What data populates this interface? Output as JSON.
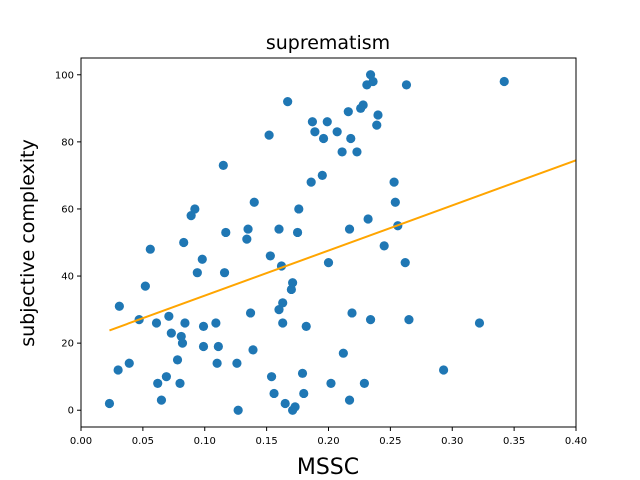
{
  "chart_data": {
    "type": "scatter",
    "title": "suprematism",
    "xlabel": "MSSC",
    "ylabel": "subjective complexity",
    "xlim": [
      0.0,
      0.4
    ],
    "ylim": [
      -5,
      105
    ],
    "xticks": [
      0.0,
      0.05,
      0.1,
      0.15,
      0.2,
      0.25,
      0.3,
      0.35,
      0.4
    ],
    "xtick_labels": [
      "0.00",
      "0.05",
      "0.10",
      "0.15",
      "0.20",
      "0.25",
      "0.30",
      "0.35",
      "0.40"
    ],
    "yticks": [
      0,
      20,
      40,
      60,
      80,
      100
    ],
    "ytick_labels": [
      "0",
      "20",
      "40",
      "60",
      "80",
      "100"
    ],
    "grid": false,
    "point_color": "#1f77b4",
    "line_color": "#ffa500",
    "points": [
      [
        0.023,
        2
      ],
      [
        0.03,
        12
      ],
      [
        0.031,
        31
      ],
      [
        0.039,
        14
      ],
      [
        0.047,
        27
      ],
      [
        0.052,
        37
      ],
      [
        0.056,
        48
      ],
      [
        0.061,
        26
      ],
      [
        0.062,
        8
      ],
      [
        0.065,
        3
      ],
      [
        0.069,
        10
      ],
      [
        0.071,
        28
      ],
      [
        0.073,
        23
      ],
      [
        0.078,
        15
      ],
      [
        0.08,
        8
      ],
      [
        0.081,
        22
      ],
      [
        0.082,
        20
      ],
      [
        0.083,
        50
      ],
      [
        0.084,
        26
      ],
      [
        0.089,
        58
      ],
      [
        0.092,
        60
      ],
      [
        0.094,
        41
      ],
      [
        0.098,
        45
      ],
      [
        0.099,
        25
      ],
      [
        0.099,
        19
      ],
      [
        0.109,
        26
      ],
      [
        0.11,
        14
      ],
      [
        0.111,
        19
      ],
      [
        0.115,
        73
      ],
      [
        0.116,
        41
      ],
      [
        0.117,
        53
      ],
      [
        0.126,
        14
      ],
      [
        0.127,
        0
      ],
      [
        0.134,
        51
      ],
      [
        0.135,
        54
      ],
      [
        0.137,
        29
      ],
      [
        0.139,
        18
      ],
      [
        0.14,
        62
      ],
      [
        0.152,
        82
      ],
      [
        0.153,
        46
      ],
      [
        0.154,
        10
      ],
      [
        0.156,
        5
      ],
      [
        0.16,
        30
      ],
      [
        0.16,
        54
      ],
      [
        0.162,
        43
      ],
      [
        0.163,
        26
      ],
      [
        0.163,
        32
      ],
      [
        0.165,
        2
      ],
      [
        0.167,
        92
      ],
      [
        0.17,
        36
      ],
      [
        0.171,
        38
      ],
      [
        0.171,
        0
      ],
      [
        0.173,
        1
      ],
      [
        0.175,
        53
      ],
      [
        0.176,
        60
      ],
      [
        0.179,
        11
      ],
      [
        0.18,
        5
      ],
      [
        0.182,
        25
      ],
      [
        0.186,
        68
      ],
      [
        0.187,
        86
      ],
      [
        0.189,
        83
      ],
      [
        0.195,
        70
      ],
      [
        0.196,
        81
      ],
      [
        0.199,
        86
      ],
      [
        0.2,
        44
      ],
      [
        0.202,
        8
      ],
      [
        0.207,
        83
      ],
      [
        0.211,
        77
      ],
      [
        0.212,
        17
      ],
      [
        0.216,
        89
      ],
      [
        0.217,
        3
      ],
      [
        0.217,
        54
      ],
      [
        0.218,
        81
      ],
      [
        0.219,
        29
      ],
      [
        0.223,
        77
      ],
      [
        0.226,
        90
      ],
      [
        0.228,
        91
      ],
      [
        0.229,
        8
      ],
      [
        0.231,
        97
      ],
      [
        0.232,
        57
      ],
      [
        0.234,
        100
      ],
      [
        0.234,
        27
      ],
      [
        0.236,
        98
      ],
      [
        0.239,
        85
      ],
      [
        0.24,
        88
      ],
      [
        0.245,
        49
      ],
      [
        0.253,
        68
      ],
      [
        0.254,
        62
      ],
      [
        0.256,
        55
      ],
      [
        0.262,
        44
      ],
      [
        0.263,
        97
      ],
      [
        0.265,
        27
      ],
      [
        0.293,
        12
      ],
      [
        0.322,
        26
      ],
      [
        0.342,
        98
      ]
    ],
    "trend_line": [
      [
        0.023,
        23.8
      ],
      [
        0.4,
        74.5
      ]
    ]
  }
}
